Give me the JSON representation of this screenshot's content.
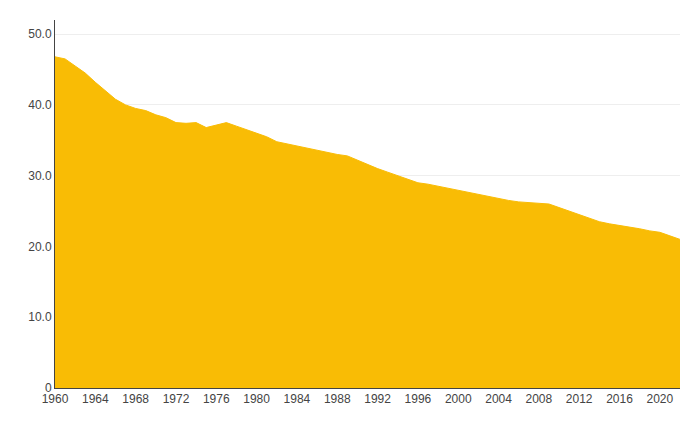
{
  "chart_data": {
    "type": "area",
    "x": [
      1960,
      1961,
      1962,
      1963,
      1964,
      1965,
      1966,
      1967,
      1968,
      1969,
      1970,
      1971,
      1972,
      1973,
      1974,
      1975,
      1976,
      1977,
      1978,
      1979,
      1980,
      1981,
      1982,
      1983,
      1984,
      1985,
      1986,
      1987,
      1988,
      1989,
      1990,
      1991,
      1992,
      1993,
      1994,
      1995,
      1996,
      1997,
      1998,
      1999,
      2000,
      2001,
      2002,
      2003,
      2004,
      2005,
      2006,
      2007,
      2008,
      2009,
      2010,
      2011,
      2012,
      2013,
      2014,
      2015,
      2016,
      2017,
      2018,
      2019,
      2020,
      2021,
      2022
    ],
    "values": [
      46.8,
      46.5,
      45.5,
      44.5,
      43.2,
      42.0,
      40.8,
      40.0,
      39.5,
      39.2,
      38.6,
      38.2,
      37.5,
      37.4,
      37.5,
      36.8,
      37.2,
      37.5,
      37.0,
      36.5,
      36.0,
      35.5,
      34.8,
      34.5,
      34.2,
      33.8,
      33.5,
      33.2,
      33.0,
      32.8,
      32.2,
      31.5,
      31.0,
      30.5,
      30.0,
      29.5,
      29.0,
      28.8,
      28.5,
      28.2,
      27.9,
      27.6,
      27.3,
      27.0,
      26.8,
      26.5,
      26.3,
      26.2,
      26.1,
      26.0,
      25.5,
      25.0,
      24.5,
      24.0,
      23.5,
      23.2,
      23.0,
      22.8,
      22.5,
      22.2,
      22.0,
      21.5,
      21.0
    ],
    "color": "#F9BC05",
    "xlim": [
      1960,
      2022
    ],
    "xticks": [
      1960,
      1964,
      1968,
      1972,
      1976,
      1980,
      1984,
      1988,
      1992,
      1996,
      2000,
      2004,
      2008,
      2012,
      2016,
      2020
    ],
    "ylim": [
      0,
      52
    ],
    "yticks": [
      0,
      {
        "value": 10,
        "label": "10.0"
      },
      {
        "value": 20,
        "label": "20.0"
      },
      {
        "value": 30,
        "label": "30.0"
      },
      {
        "value": 40,
        "label": "40.0"
      },
      {
        "value": 50,
        "label": "50.0"
      }
    ],
    "grid": true
  }
}
